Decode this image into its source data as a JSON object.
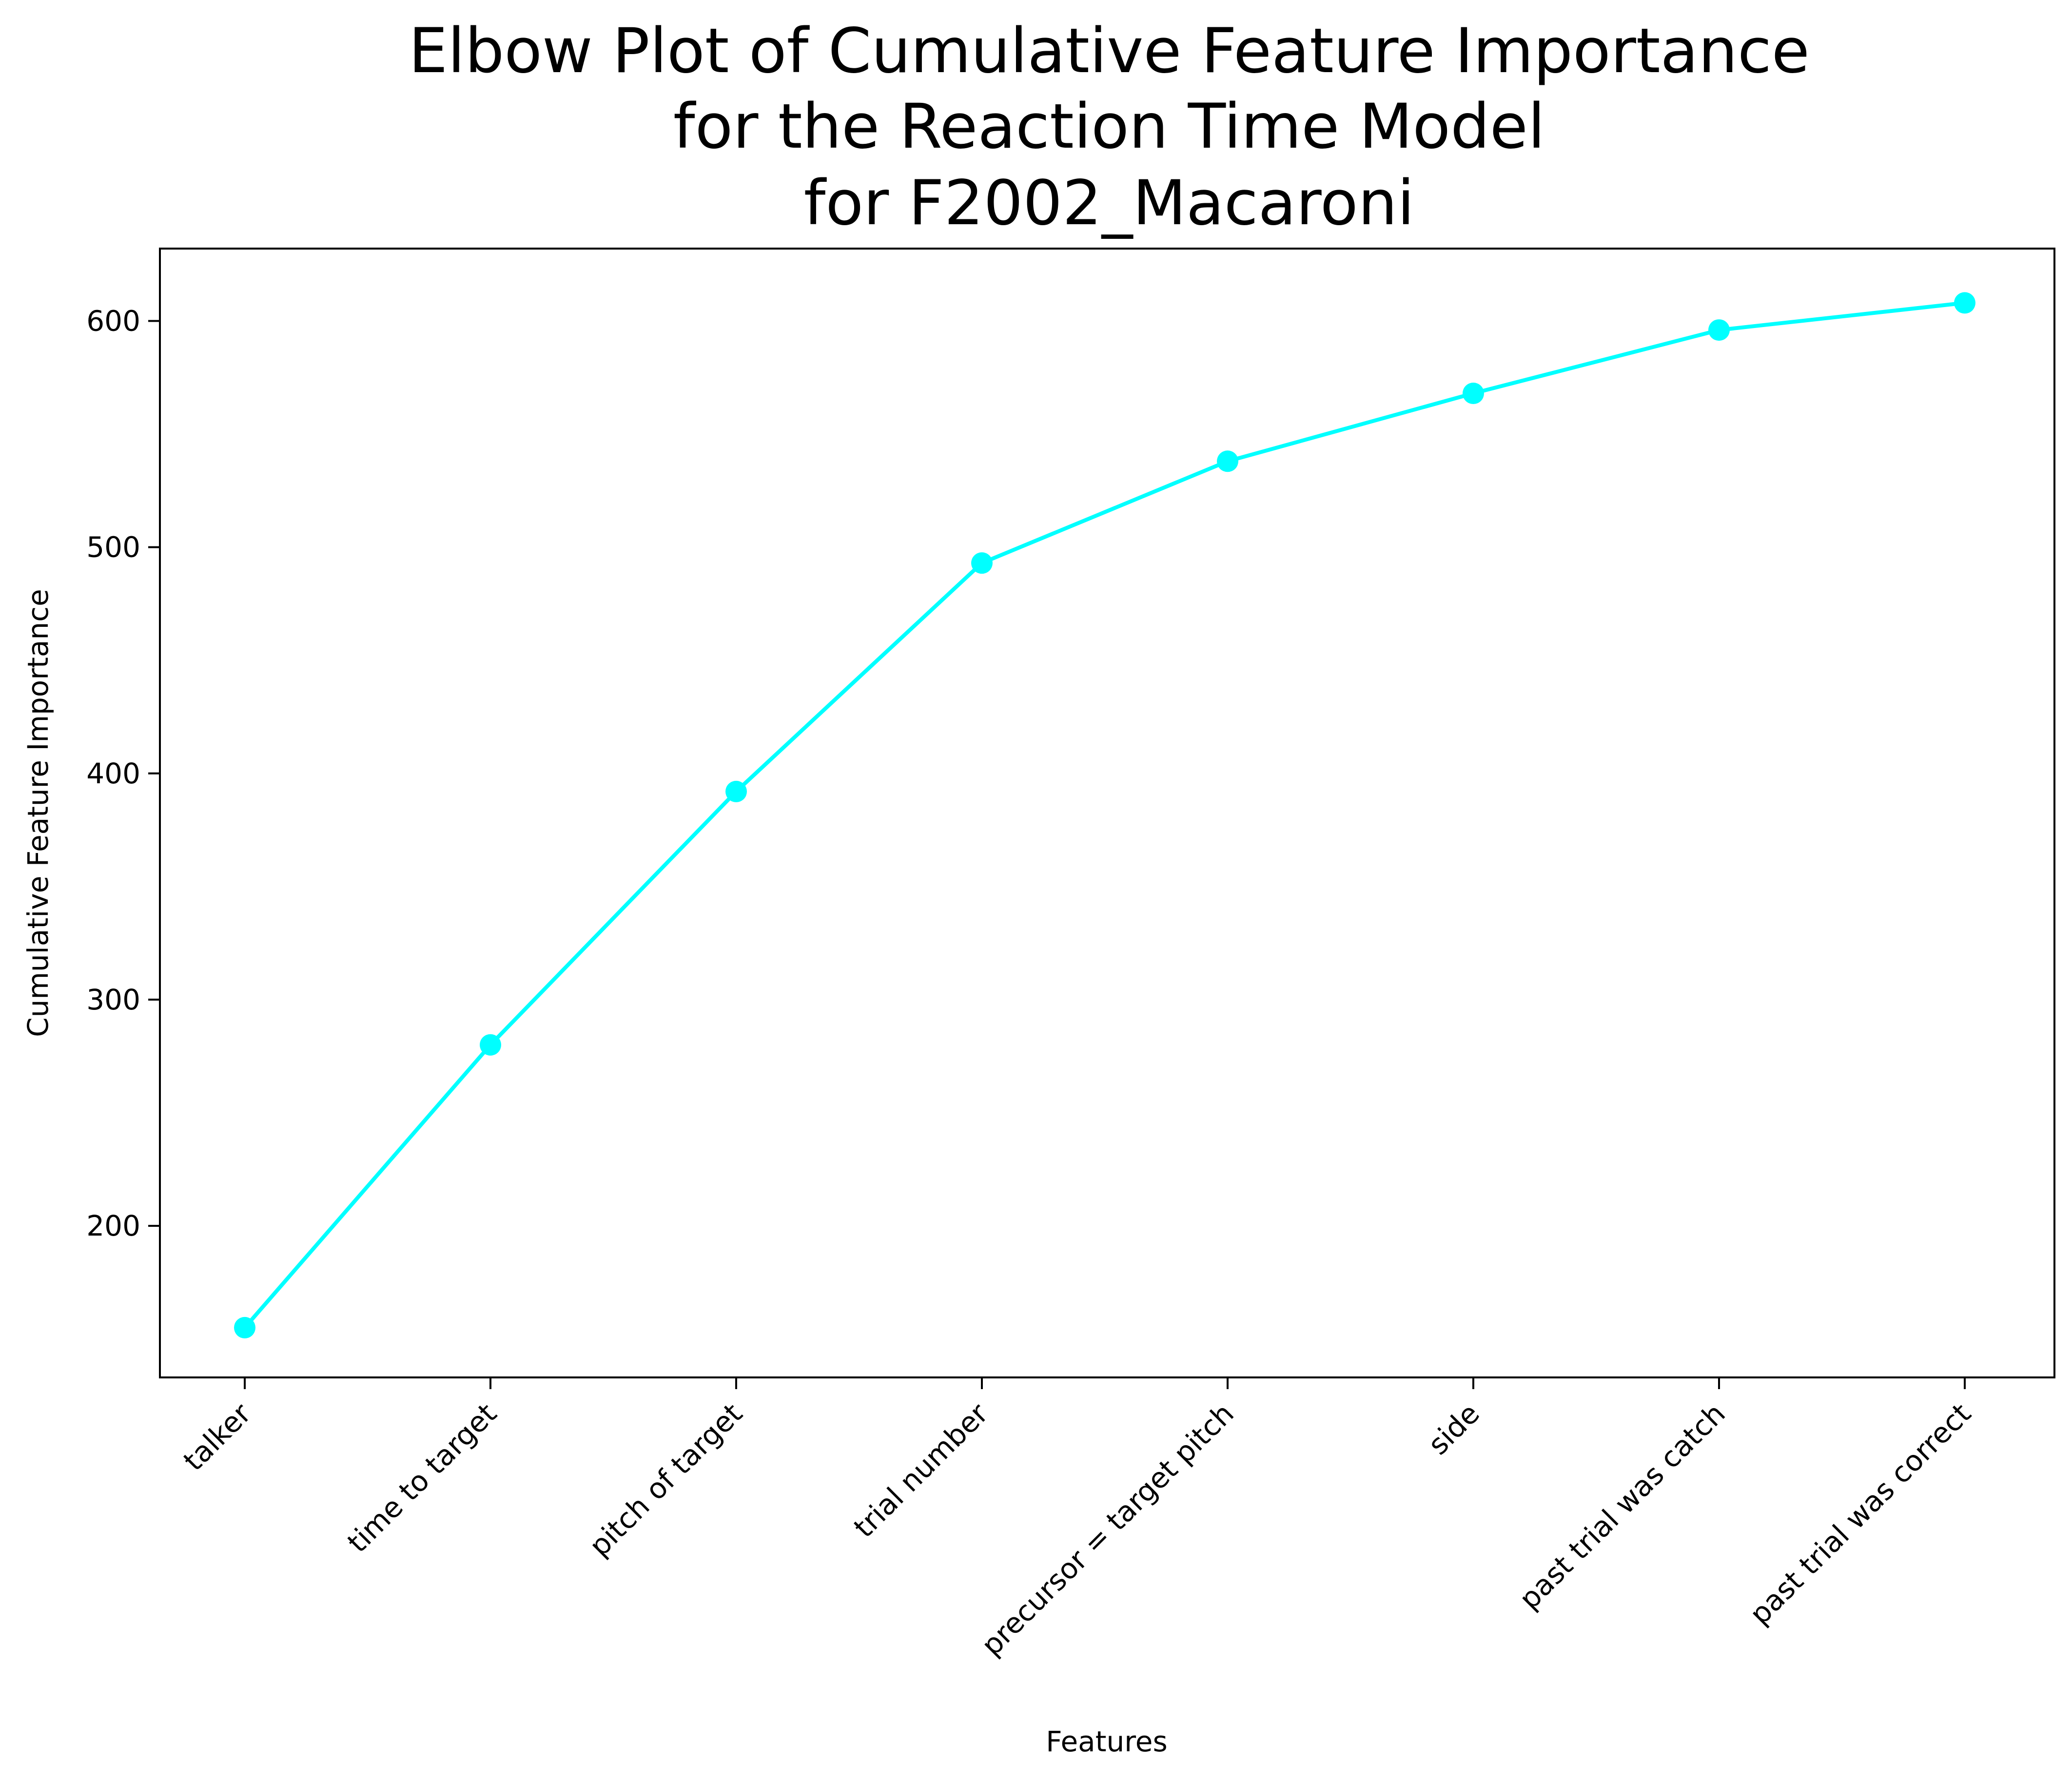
{
  "chart_data": {
    "type": "line",
    "title_lines": [
      "Elbow Plot of Cumulative Feature Importance",
      "for the Reaction Time Model",
      "for F2002_Macaroni"
    ],
    "xlabel": "Features",
    "ylabel": "Cumulative Feature Importance",
    "categories": [
      "talker",
      "time to target",
      "pitch of target",
      "trial number",
      "precursor = target pitch",
      "side",
      "past trial was catch",
      "past trial was correct"
    ],
    "values": [
      155,
      280,
      392,
      493,
      538,
      568,
      596,
      608
    ],
    "y_ticks": [
      200,
      300,
      400,
      500,
      600
    ],
    "ylim": [
      133,
      632
    ],
    "grid": false,
    "legend": "none",
    "line_color": "#00ffff",
    "marker": "circle"
  }
}
